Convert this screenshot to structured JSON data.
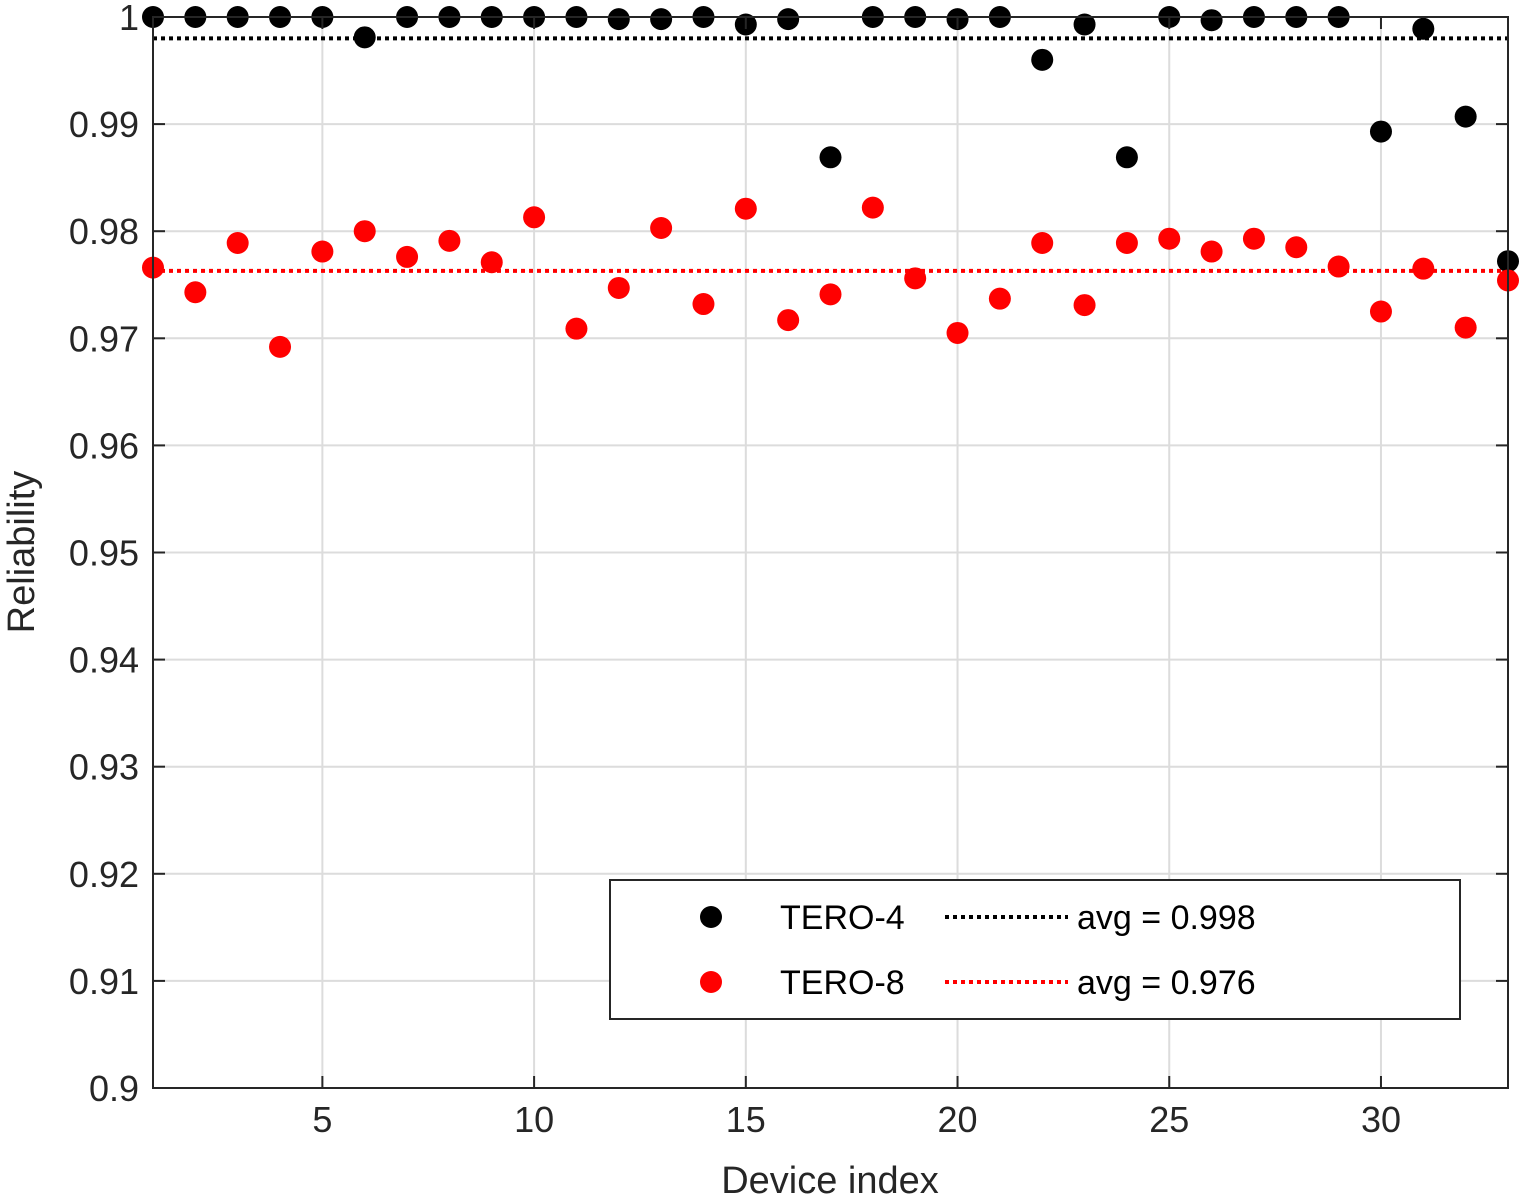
{
  "chart_data": {
    "type": "scatter",
    "xlabel": "Device index",
    "ylabel": "Reliability",
    "xlim": [
      1,
      33
    ],
    "ylim": [
      0.9,
      1.0
    ],
    "xticks": [
      5,
      10,
      15,
      20,
      25,
      30
    ],
    "xtick_labels": [
      "5",
      "10",
      "15",
      "20",
      "25",
      "30"
    ],
    "yticks": [
      0.9,
      0.91,
      0.92,
      0.93,
      0.94,
      0.95,
      0.96,
      0.97,
      0.98,
      0.99,
      1.0
    ],
    "ytick_labels": [
      "0.9",
      "0.91",
      "0.92",
      "0.93",
      "0.94",
      "0.95",
      "0.96",
      "0.97",
      "0.98",
      "0.99",
      "1"
    ],
    "grid": true,
    "legend_position": "lower-right",
    "x": [
      1,
      2,
      3,
      4,
      5,
      6,
      7,
      8,
      9,
      10,
      11,
      12,
      13,
      14,
      15,
      16,
      17,
      18,
      19,
      20,
      21,
      22,
      23,
      24,
      25,
      26,
      27,
      28,
      29,
      30,
      31,
      32,
      33
    ],
    "series": [
      {
        "name": "TERO-4",
        "color": "#000000",
        "values": [
          1.0,
          1.0,
          1.0,
          1.0,
          1.0,
          0.9981,
          1.0,
          1.0,
          1.0,
          1.0,
          1.0,
          0.9998,
          0.9998,
          1.0,
          0.9993,
          0.9998,
          0.9869,
          1.0,
          1.0,
          0.9998,
          1.0,
          0.996,
          0.9993,
          0.9869,
          1.0,
          0.9997,
          1.0,
          1.0,
          1.0,
          0.9893,
          0.9989,
          0.9907,
          0.9772
        ],
        "avg": 0.998,
        "avg_label": "avg = 0.998"
      },
      {
        "name": "TERO-8",
        "color": "#ff0000",
        "values": [
          0.9766,
          0.9743,
          0.9789,
          0.9692,
          0.9781,
          0.98,
          0.9776,
          0.9791,
          0.9771,
          0.9813,
          0.9709,
          0.9747,
          0.9803,
          0.9732,
          0.9821,
          0.9717,
          0.9741,
          0.9822,
          0.9756,
          0.9705,
          0.9737,
          0.9789,
          0.9731,
          0.9789,
          0.9793,
          0.9781,
          0.9793,
          0.9785,
          0.9767,
          0.9725,
          0.9765,
          0.971,
          0.9754
        ],
        "avg": 0.9763,
        "avg_label": "avg = 0.976"
      }
    ]
  }
}
